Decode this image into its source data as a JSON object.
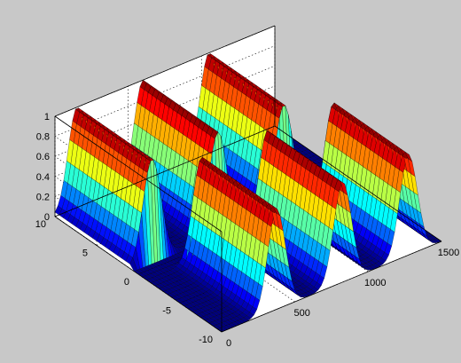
{
  "chart_data": {
    "type": "surface",
    "title": "",
    "xlabel": "",
    "ylabel": "",
    "zlabel": "",
    "colormap": "jet",
    "grid": true,
    "background": "#c8c8c8",
    "axes_background": "#ffffff",
    "xlim": [
      0,
      1500
    ],
    "ylim": [
      -10,
      10
    ],
    "zlim": [
      0,
      1
    ],
    "x_ticks": [
      0,
      500,
      1000,
      1500
    ],
    "y_ticks": [
      -10,
      -5,
      0,
      5,
      10
    ],
    "z_ticks": [
      0,
      0.2,
      0.4,
      0.6,
      0.8,
      1
    ],
    "x_tick_labels": [
      "0",
      "500",
      "1000",
      "1500"
    ],
    "y_tick_labels": [
      "-10",
      "-5",
      "0",
      "5",
      "10"
    ],
    "z_tick_labels": [
      "0",
      "0.2",
      "0.4",
      "0.6",
      "0.8",
      "1"
    ],
    "ridges": [
      {
        "y_start": 1,
        "y_end": 10,
        "x_center": 150,
        "x_width": 120,
        "peak": 1
      },
      {
        "y_start": 1,
        "y_end": 10,
        "x_center": 600,
        "x_width": 120,
        "peak": 1
      },
      {
        "y_start": 1,
        "y_end": 10,
        "x_center": 1050,
        "x_width": 120,
        "peak": 1
      },
      {
        "y_start": -10,
        "y_end": -1,
        "x_center": 375,
        "x_width": 120,
        "peak": 1
      },
      {
        "y_start": -10,
        "y_end": -1,
        "x_center": 825,
        "x_width": 120,
        "peak": 1
      },
      {
        "y_start": -10,
        "y_end": -1,
        "x_center": 1275,
        "x_width": 120,
        "peak": 1
      }
    ]
  }
}
